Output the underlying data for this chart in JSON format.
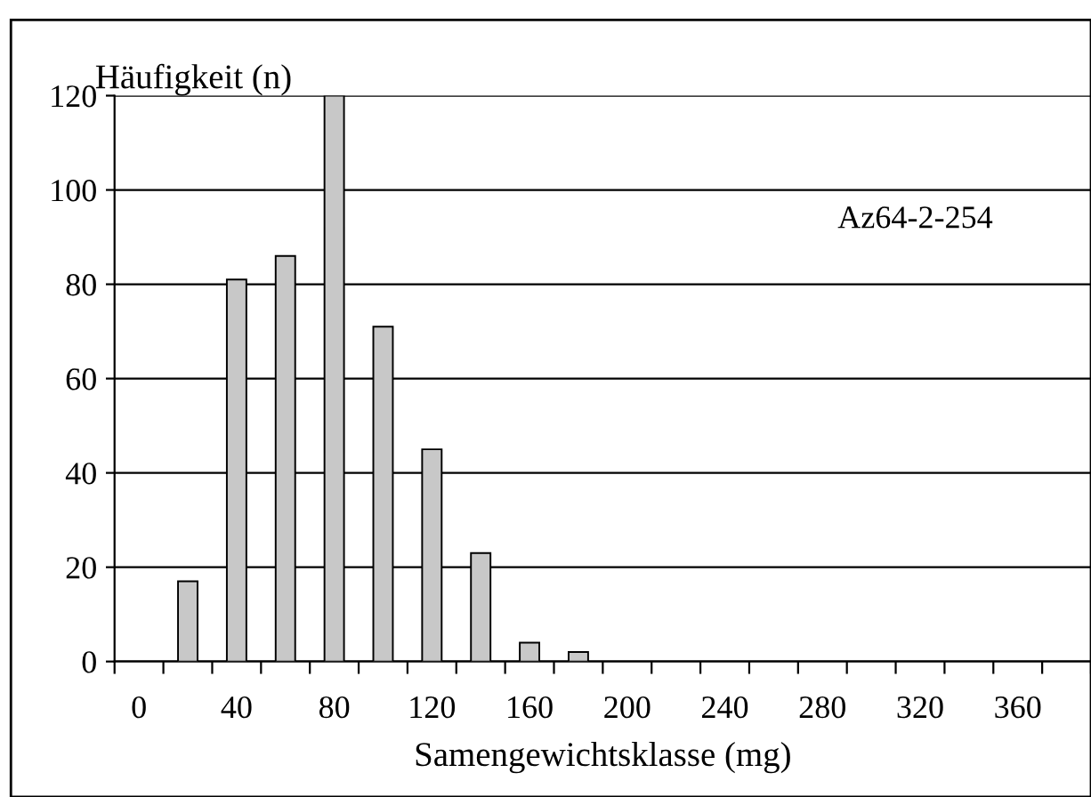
{
  "chart_data": {
    "type": "bar",
    "ylabel": "Häufigkeit (n)",
    "xlabel": "Samengewichtsklasse (mg)",
    "annotations": [
      "Az64-2-254"
    ],
    "categories": [
      "0",
      null,
      "40",
      null,
      "80",
      null,
      "120",
      null,
      "160",
      null,
      "200",
      null,
      "240",
      null,
      "280",
      null,
      "320",
      null,
      "360",
      null
    ],
    "values": [
      0,
      17,
      81,
      86,
      120,
      71,
      45,
      23,
      4,
      2,
      0,
      0,
      0,
      0,
      0,
      0,
      0,
      0,
      0,
      0
    ],
    "color": "#c8c8c8",
    "ylim": [
      0,
      120
    ],
    "yticks": [
      0,
      20,
      40,
      60,
      80,
      100,
      120
    ],
    "grid": "y"
  }
}
